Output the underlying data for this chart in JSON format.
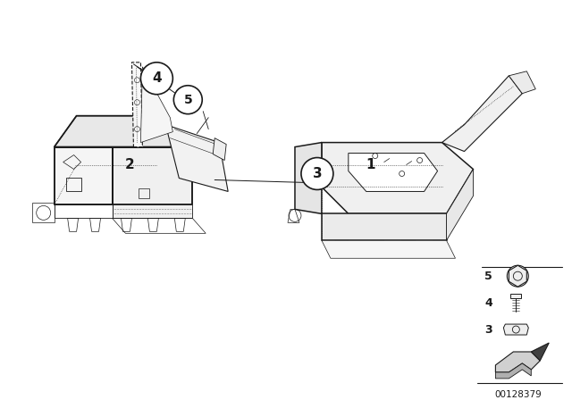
{
  "background_color": "#ffffff",
  "figsize": [
    6.4,
    4.48
  ],
  "dpi": 100,
  "line_color": "#1a1a1a",
  "part_number": "00128379",
  "lw": 0.7,
  "lw_bold": 1.1,
  "lw_dot": 0.5
}
